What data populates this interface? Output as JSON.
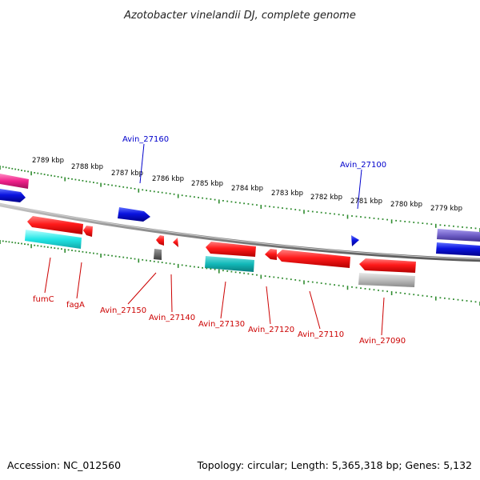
{
  "title": "Azotobacter vinelandii DJ, complete genome",
  "footer": {
    "accession": "Accession: NC_012560",
    "topology": "Topology: circular; Length: 5,365,318 bp; Genes: 5,132"
  },
  "colors": {
    "backbone": "#8a8a8a",
    "ticks": "#2e8b2e",
    "forward_label": "#0000cc",
    "reverse_label": "#cc0000",
    "red_gene": "#ff1a1a",
    "blue_gene": "#0a14e0",
    "cyan_gene": "#22dede",
    "teal_gene": "#12b8b8",
    "gray_gene": "#bdbdbd",
    "darkgray_gene": "#6b6b6b",
    "magenta_gene": "#f0208a",
    "purple_gene": "#7060c8"
  },
  "scale_labels": [
    "2789 kbp",
    "2788 kbp",
    "2787 kbp",
    "2786 kbp",
    "2785 kbp",
    "2784 kbp",
    "2783 kbp",
    "2782 kbp",
    "2781 kbp",
    "2780 kbp",
    "2779 kbp"
  ],
  "forward_labels": [
    "Avin_27160",
    "Avin_27100"
  ],
  "reverse_labels": [
    "fumC",
    "fagA",
    "Avin_27150",
    "Avin_27140",
    "Avin_27130",
    "Avin_27120",
    "Avin_27110",
    "Avin_27090"
  ]
}
